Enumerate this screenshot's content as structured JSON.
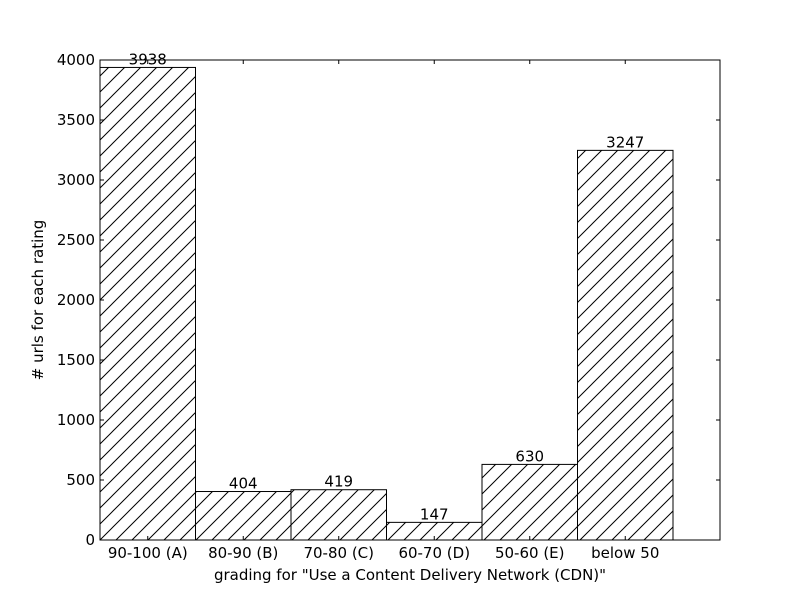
{
  "chart_data": {
    "type": "bar",
    "title": "",
    "xlabel": "grading for \"Use a Content Delivery Network (CDN)\"",
    "ylabel": "# urls for each rating",
    "categories": [
      "90-100 (A)",
      "80-90 (B)",
      "70-80 (C)",
      "60-70 (D)",
      "50-60 (E)",
      "below 50"
    ],
    "values": [
      3938,
      404,
      419,
      147,
      630,
      3247
    ],
    "data_labels": [
      "3938",
      "404",
      "419",
      "147",
      "630",
      "3247"
    ],
    "ylim": [
      0,
      4000
    ],
    "yticks": [
      0,
      500,
      1000,
      1500,
      2000,
      2500,
      3000,
      3500,
      4000
    ],
    "ytick_labels": [
      "0",
      "500",
      "1000",
      "1500",
      "2000",
      "2500",
      "3000",
      "3500",
      "4000"
    ],
    "grid": false,
    "bar_style": {
      "fill": "#ffffff",
      "edge": "#000000",
      "hatch": "diagonal"
    }
  }
}
